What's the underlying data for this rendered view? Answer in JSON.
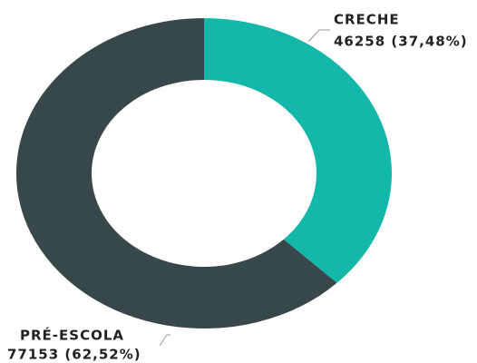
{
  "chart_data": {
    "type": "donut",
    "categories": [
      "CRECHE",
      "PRÉ-ESCOLA"
    ],
    "values": [
      46258,
      77153
    ],
    "value_labels": [
      "46258 (37,48%)",
      "77153 (62,52%)"
    ],
    "colors": [
      "#14b8aa",
      "#37474a"
    ]
  }
}
